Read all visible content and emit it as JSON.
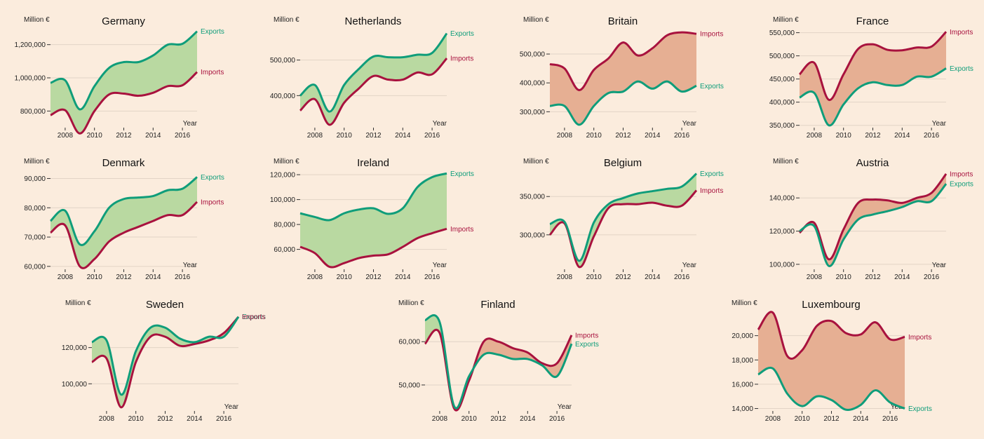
{
  "colors": {
    "background": "#fbecdd",
    "exports": "#0f9d7a",
    "imports": "#a8123e",
    "surplus_fill": "#b9d9a1",
    "deficit_fill": "#e6af93"
  },
  "unit_label": "Million €",
  "x_axis_label": "Year",
  "years": [
    2007,
    2008,
    2009,
    2010,
    2011,
    2012,
    2013,
    2014,
    2015,
    2016,
    2017
  ],
  "chart_data": [
    {
      "type": "area",
      "title": "Germany",
      "ylim": [
        700000,
        1300000
      ],
      "yticks": [
        {
          "v": 800000,
          "label": "800,000"
        },
        {
          "v": 1000000,
          "label": "1,000,000"
        },
        {
          "v": 1200000,
          "label": "1,200,000"
        }
      ],
      "series": [
        {
          "name": "Exports",
          "values": [
            970000,
            985000,
            810000,
            950000,
            1060000,
            1095000,
            1095000,
            1135000,
            1200000,
            1205000,
            1280000
          ]
        },
        {
          "name": "Imports",
          "values": [
            775000,
            805000,
            665000,
            800000,
            900000,
            905000,
            892000,
            910000,
            950000,
            955000,
            1035000
          ]
        }
      ]
    },
    {
      "type": "area",
      "title": "Netherlands",
      "ylim": [
        310000,
        590000
      ],
      "yticks": [
        {
          "v": 400000,
          "label": "400,000"
        },
        {
          "v": 500000,
          "label": "500,000"
        }
      ],
      "series": [
        {
          "name": "Exports",
          "values": [
            400000,
            430000,
            355000,
            430000,
            475000,
            510000,
            508000,
            508000,
            515000,
            520000,
            575000
          ]
        },
        {
          "name": "Imports",
          "values": [
            358000,
            390000,
            318000,
            380000,
            420000,
            455000,
            445000,
            445000,
            465000,
            460000,
            505000
          ]
        }
      ]
    },
    {
      "type": "area",
      "title": "Britain",
      "ylim": [
        245000,
        590000
      ],
      "yticks": [
        {
          "v": 300000,
          "label": "300,000"
        },
        {
          "v": 400000,
          "label": "400,000"
        },
        {
          "v": 500000,
          "label": "500,000"
        }
      ],
      "series": [
        {
          "name": "Exports",
          "values": [
            320000,
            320000,
            255000,
            320000,
            365000,
            370000,
            405000,
            380000,
            405000,
            370000,
            390000
          ]
        },
        {
          "name": "Imports",
          "values": [
            465000,
            450000,
            375000,
            445000,
            485000,
            540000,
            495000,
            520000,
            565000,
            575000,
            570000
          ]
        }
      ]
    },
    {
      "type": "area",
      "title": "France",
      "ylim": [
        345000,
        560000
      ],
      "yticks": [
        {
          "v": 350000,
          "label": "350,000"
        },
        {
          "v": 400000,
          "label": "400,000"
        },
        {
          "v": 450000,
          "label": "450,000"
        },
        {
          "v": 500000,
          "label": "500,000"
        },
        {
          "v": 550000,
          "label": "550,000"
        }
      ],
      "series": [
        {
          "name": "Exports",
          "values": [
            410000,
            420000,
            350000,
            395000,
            430000,
            443000,
            437000,
            437000,
            455000,
            455000,
            473000
          ]
        },
        {
          "name": "Imports",
          "values": [
            460000,
            485000,
            405000,
            460000,
            515000,
            525000,
            513000,
            512000,
            518000,
            520000,
            552000
          ]
        }
      ]
    },
    {
      "type": "area",
      "title": "Denmark",
      "ylim": [
        59000,
        93000
      ],
      "yticks": [
        {
          "v": 60000,
          "label": "60,000"
        },
        {
          "v": 70000,
          "label": "70,000"
        },
        {
          "v": 80000,
          "label": "80,000"
        },
        {
          "v": 90000,
          "label": "90,000"
        }
      ],
      "series": [
        {
          "name": "Exports",
          "values": [
            75500,
            79000,
            67500,
            72000,
            80000,
            83000,
            83500,
            84000,
            86000,
            86500,
            90500
          ]
        },
        {
          "name": "Imports",
          "values": [
            71500,
            74000,
            60000,
            62500,
            68500,
            71500,
            73500,
            75500,
            77500,
            77500,
            82000
          ]
        }
      ]
    },
    {
      "type": "area",
      "title": "Ireland",
      "ylim": [
        44000,
        124000
      ],
      "yticks": [
        {
          "v": 60000,
          "label": "60,000"
        },
        {
          "v": 80000,
          "label": "80,000"
        },
        {
          "v": 100000,
          "label": "100,000"
        },
        {
          "v": 120000,
          "label": "120,000"
        }
      ],
      "series": [
        {
          "name": "Exports",
          "values": [
            89000,
            86000,
            83500,
            89000,
            92000,
            93000,
            88500,
            93000,
            110000,
            118000,
            121000
          ]
        },
        {
          "name": "Imports",
          "values": [
            62000,
            57000,
            46000,
            49000,
            53000,
            55000,
            56000,
            62000,
            69000,
            73000,
            76500
          ]
        }
      ]
    },
    {
      "type": "area",
      "title": "Belgium",
      "ylim": [
        255000,
        385000
      ],
      "yticks": [
        {
          "v": 300000,
          "label": "300,000"
        },
        {
          "v": 350000,
          "label": "350,000"
        }
      ],
      "series": [
        {
          "name": "Exports",
          "values": [
            314000,
            317000,
            266000,
            316000,
            340000,
            348000,
            354000,
            357000,
            360000,
            363000,
            380000
          ]
        },
        {
          "name": "Imports",
          "values": [
            300000,
            315000,
            258000,
            298000,
            335000,
            340000,
            340000,
            342000,
            338000,
            338000,
            358000
          ]
        }
      ]
    },
    {
      "type": "area",
      "title": "Austria",
      "ylim": [
        97000,
        157000
      ],
      "yticks": [
        {
          "v": 100000,
          "label": "100,000"
        },
        {
          "v": 120000,
          "label": "120,000"
        },
        {
          "v": 140000,
          "label": "140,000"
        }
      ],
      "series": [
        {
          "name": "Exports",
          "values": [
            120000,
            123000,
            99000,
            115000,
            127000,
            130000,
            132000,
            134500,
            138000,
            138000,
            148500
          ]
        },
        {
          "name": "Imports",
          "values": [
            119000,
            125000,
            103000,
            121000,
            137000,
            139000,
            138500,
            137000,
            140000,
            143000,
            154500
          ]
        }
      ]
    },
    {
      "type": "area",
      "title": "Sweden",
      "ylim": [
        85000,
        140000
      ],
      "yticks": [
        {
          "v": 100000,
          "label": "100,000"
        },
        {
          "v": 120000,
          "label": "120,000"
        }
      ],
      "series": [
        {
          "name": "Exports",
          "values": [
            123000,
            124000,
            94000,
            118000,
            131000,
            131000,
            125000,
            123000,
            126000,
            126000,
            137000
          ]
        },
        {
          "name": "Imports",
          "values": [
            112000,
            114000,
            87000,
            112000,
            126000,
            126000,
            121000,
            122000,
            124000,
            128000,
            137000
          ]
        }
      ]
    },
    {
      "type": "area",
      "title": "Finland",
      "ylim": [
        44000,
        67000
      ],
      "yticks": [
        {
          "v": 50000,
          "label": "50,000"
        },
        {
          "v": 60000,
          "label": "60,000"
        }
      ],
      "series": [
        {
          "name": "Exports",
          "values": [
            65000,
            64500,
            45000,
            52000,
            57000,
            57000,
            56000,
            56000,
            54500,
            52000,
            59500
          ]
        },
        {
          "name": "Imports",
          "values": [
            59500,
            62000,
            44500,
            51000,
            60000,
            60000,
            58500,
            57500,
            55000,
            55000,
            61500
          ]
        }
      ]
    },
    {
      "type": "area",
      "title": "Luxembourg",
      "ylim": [
        13800,
        22000
      ],
      "yticks": [
        {
          "v": 14000,
          "label": "14,000"
        },
        {
          "v": 16000,
          "label": "16,000"
        },
        {
          "v": 18000,
          "label": "18,000"
        },
        {
          "v": 20000,
          "label": "20,000"
        }
      ],
      "series": [
        {
          "name": "Exports",
          "values": [
            16800,
            17300,
            15200,
            14200,
            15000,
            14700,
            13900,
            14300,
            15500,
            14500,
            14000
          ]
        },
        {
          "name": "Imports",
          "values": [
            20500,
            21900,
            18300,
            18800,
            20800,
            21200,
            20200,
            20100,
            21100,
            19700,
            19900
          ]
        }
      ]
    }
  ]
}
